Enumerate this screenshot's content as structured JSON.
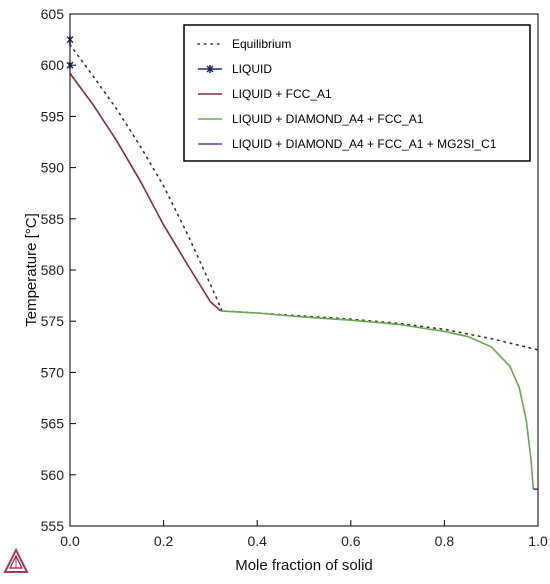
{
  "chart_data": {
    "type": "line",
    "title": "",
    "xlabel": "Mole fraction of solid",
    "ylabel": "Temperature [°C]",
    "xlim": [
      0.0,
      1.0
    ],
    "ylim": [
      555,
      605
    ],
    "x_ticks": [
      "0.0",
      "0.2",
      "0.4",
      "0.6",
      "0.8",
      "1.0"
    ],
    "y_ticks": [
      "555",
      "560",
      "565",
      "570",
      "575",
      "580",
      "585",
      "590",
      "595",
      "600",
      "605"
    ],
    "grid": false,
    "legend_position": "top-right",
    "series": [
      {
        "name": "Equilibrium",
        "style": "dotted",
        "color": "#333333",
        "points": [
          [
            0.0,
            602.0
          ],
          [
            0.05,
            598.9
          ],
          [
            0.1,
            595.7
          ],
          [
            0.15,
            592.1
          ],
          [
            0.2,
            588.2
          ],
          [
            0.25,
            583.6
          ],
          [
            0.3,
            578.6
          ],
          [
            0.325,
            576.0
          ],
          [
            0.4,
            575.8
          ],
          [
            0.5,
            575.5
          ],
          [
            0.6,
            575.2
          ],
          [
            0.7,
            574.8
          ],
          [
            0.8,
            574.2
          ],
          [
            0.9,
            573.3
          ],
          [
            1.0,
            572.2
          ]
        ]
      },
      {
        "name": "LIQUID",
        "style": "marker",
        "color": "#1f2a6b",
        "points": [
          [
            0.0,
            602.5
          ],
          [
            0.0,
            600.0
          ]
        ]
      },
      {
        "name": "LIQUID + FCC_A1",
        "style": "solid",
        "color": "#8b2a3a",
        "points": [
          [
            0.0,
            599.2
          ],
          [
            0.05,
            596.1
          ],
          [
            0.1,
            592.6
          ],
          [
            0.15,
            588.7
          ],
          [
            0.2,
            584.4
          ],
          [
            0.25,
            580.6
          ],
          [
            0.3,
            576.9
          ],
          [
            0.322,
            576.0
          ]
        ]
      },
      {
        "name": "LIQUID + DIAMOND_A4 + FCC_A1",
        "style": "solid",
        "color": "#6aa84f",
        "points": [
          [
            0.322,
            576.0
          ],
          [
            0.4,
            575.8
          ],
          [
            0.5,
            575.4
          ],
          [
            0.6,
            575.1
          ],
          [
            0.7,
            574.7
          ],
          [
            0.8,
            574.0
          ],
          [
            0.85,
            573.5
          ],
          [
            0.9,
            572.5
          ],
          [
            0.94,
            570.6
          ],
          [
            0.96,
            568.5
          ],
          [
            0.975,
            565.3
          ],
          [
            0.985,
            561.5
          ],
          [
            0.99,
            558.6
          ]
        ]
      },
      {
        "name": "LIQUID + DIAMOND_A4 + FCC_A1 + MG2SI_C1",
        "style": "solid",
        "color": "#6b3a8b",
        "points": [
          [
            0.99,
            558.6
          ],
          [
            1.0,
            558.6
          ]
        ]
      }
    ]
  },
  "colors": {
    "logo": "#a23b5c"
  },
  "icons": {
    "logo": "thermo-calc-logo-icon"
  }
}
